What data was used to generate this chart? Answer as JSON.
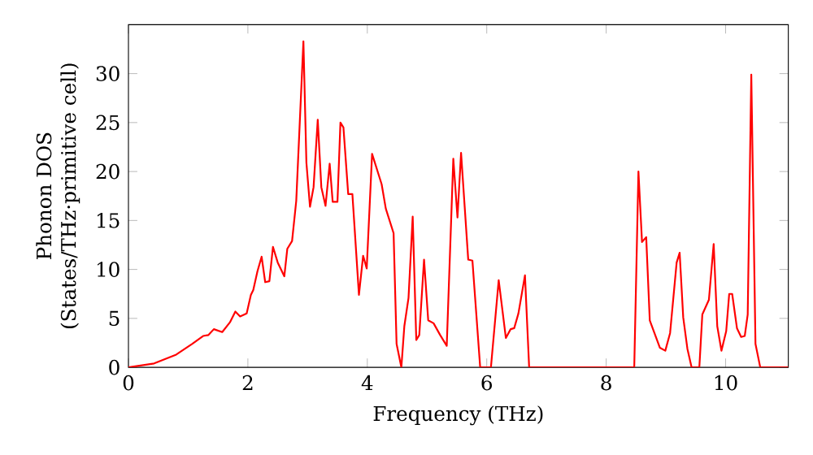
{
  "chart_data": {
    "type": "line",
    "xlabel": "Frequency (THz)",
    "ylabel": "Phonon DOS\n(States/THz·primitive cell)",
    "xlim": [
      0,
      11.05
    ],
    "ylim": [
      0,
      35
    ],
    "xticks": [
      0,
      2,
      4,
      6,
      8,
      10
    ],
    "yticks": [
      0,
      5,
      10,
      15,
      20,
      25,
      30
    ],
    "grid": false,
    "marker": "none",
    "line_style": "solid",
    "x": [
      0,
      0.43,
      0.8,
      1.07,
      1.25,
      1.34,
      1.43,
      1.57,
      1.7,
      1.79,
      1.87,
      1.98,
      2.05,
      2.09,
      2.16,
      2.23,
      2.29,
      2.36,
      2.42,
      2.5,
      2.61,
      2.66,
      2.74,
      2.81,
      2.93,
      2.98,
      3.04,
      3.1,
      3.17,
      3.23,
      3.3,
      3.37,
      3.42,
      3.5,
      3.55,
      3.6,
      3.68,
      3.75,
      3.86,
      3.93,
      3.99,
      4.08,
      4.24,
      4.31,
      4.44,
      4.49,
      4.57,
      4.62,
      4.69,
      4.76,
      4.82,
      4.87,
      4.95,
      5.02,
      5.11,
      5.22,
      5.33,
      5.44,
      5.51,
      5.57,
      5.69,
      5.76,
      5.89,
      6.07,
      6.2,
      6.32,
      6.4,
      6.46,
      6.53,
      6.64,
      6.71,
      8.47,
      8.54,
      8.6,
      8.67,
      8.73,
      8.9,
      8.99,
      9.07,
      9.18,
      9.23,
      9.29,
      9.36,
      9.43,
      9.56,
      9.61,
      9.72,
      9.8,
      9.86,
      9.93,
      10.01,
      10.06,
      10.11,
      10.19,
      10.26,
      10.32,
      10.37,
      10.43,
      10.5,
      10.58,
      11.05
    ],
    "series": [
      {
        "color": "#ff0000",
        "values": [
          0,
          0.4,
          1.3,
          2.4,
          3.2,
          3.3,
          3.9,
          3.6,
          4.6,
          5.7,
          5.2,
          5.5,
          7.4,
          7.9,
          9.8,
          11.3,
          8.7,
          8.8,
          12.3,
          10.7,
          9.3,
          12.1,
          12.9,
          17,
          33.3,
          20.9,
          16.4,
          18.4,
          25.3,
          18.4,
          16.5,
          20.8,
          16.9,
          16.9,
          25,
          24.5,
          17.7,
          17.7,
          7.4,
          11.4,
          10.1,
          21.8,
          18.7,
          16.2,
          13.7,
          2.4,
          0,
          4.2,
          7.1,
          15.4,
          2.8,
          3.3,
          11,
          4.8,
          4.5,
          3.3,
          2.2,
          21.3,
          15.3,
          21.9,
          11,
          10.9,
          0,
          0,
          8.9,
          3,
          3.9,
          4,
          5.5,
          9.4,
          0,
          0,
          20,
          12.8,
          13.3,
          4.8,
          2,
          1.7,
          3.5,
          10.7,
          11.7,
          5.1,
          1.9,
          0,
          0,
          5.4,
          6.9,
          12.6,
          4.2,
          1.7,
          3.7,
          7.5,
          7.5,
          4,
          3.1,
          3.2,
          5.4,
          29.9,
          2.4,
          0,
          0
        ]
      }
    ]
  }
}
